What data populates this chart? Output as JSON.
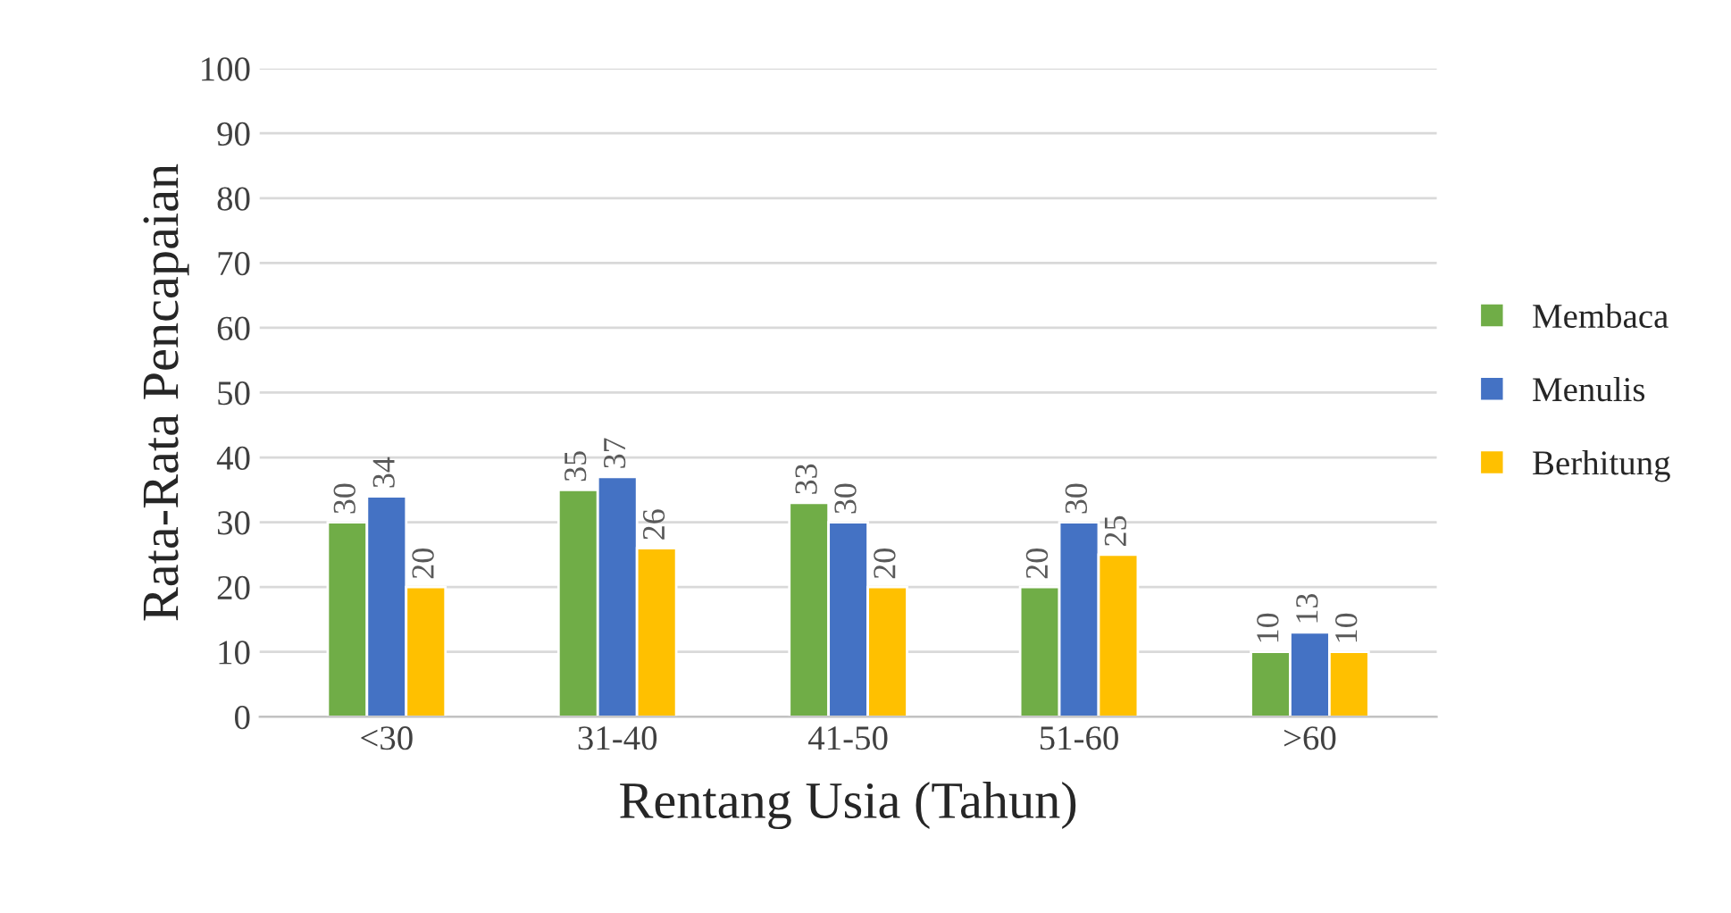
{
  "chart_data": {
    "type": "bar",
    "xlabel": "Rentang Usia (Tahun)",
    "ylabel": "Rata-Rata Pencapaian",
    "categories": [
      "<30",
      "31-40",
      "41-50",
      "51-60",
      ">60"
    ],
    "series": [
      {
        "name": "Membaca",
        "color": "#70ad47",
        "values": [
          30,
          35,
          33,
          20,
          10
        ]
      },
      {
        "name": "Menulis",
        "color": "#4472c4",
        "values": [
          34,
          37,
          30,
          30,
          13
        ]
      },
      {
        "name": "Berhitung",
        "color": "#ffc000",
        "values": [
          20,
          26,
          20,
          25,
          10
        ]
      }
    ],
    "ylim": [
      0,
      100
    ],
    "yticks": [
      0,
      10,
      20,
      30,
      40,
      50,
      60,
      70,
      80,
      90,
      100
    ],
    "grid": "y",
    "legend": "right",
    "data_labels": true
  }
}
